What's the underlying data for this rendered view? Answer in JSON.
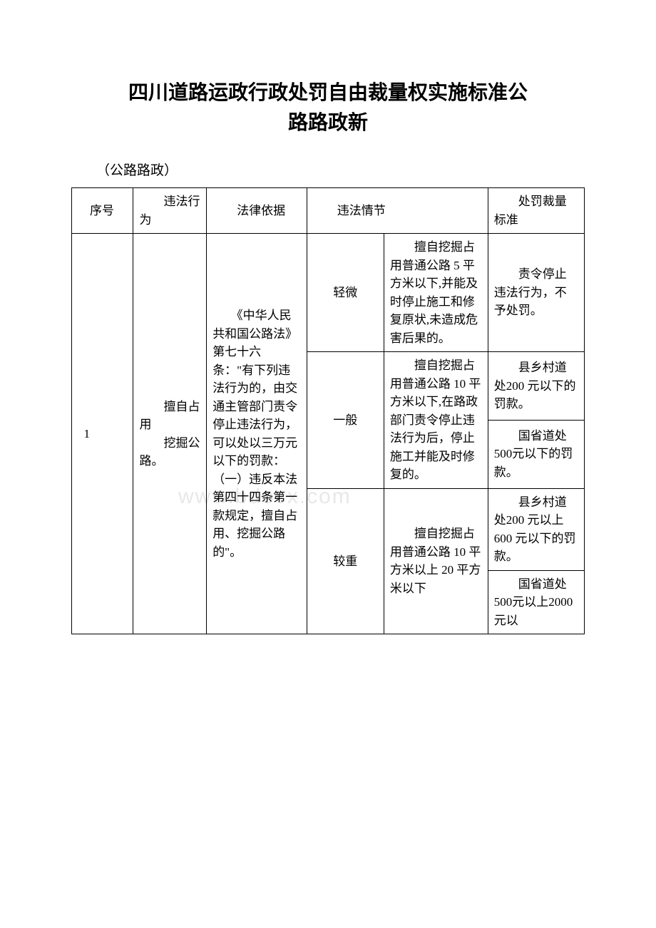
{
  "title_line1": "四川道路运政行政处罚自由裁量权实施标准公",
  "title_line2": "路路政新",
  "subtitle": "（公路路政）",
  "watermark": "www.bdocx.com",
  "headers": {
    "seq": "序号",
    "behavior": "违法行为",
    "basis": "法律依据",
    "situation": "违法情节",
    "penalty": "处罚裁量标准"
  },
  "row1": {
    "seq": "1",
    "behavior_line1": "　　擅自占用",
    "behavior_line2": "　　挖掘公路。",
    "basis": "　　《中华人民共和国公路法》第七十六条：\"有下列违法行为的，由交通主管部门责令停止违法行为，可以处以三万元以下的罚款：（一）违反本法第四十四条第一款规定，擅自占用、挖掘公路的\"。",
    "severity_light": "轻微",
    "severity_normal": "一般",
    "severity_heavy": "较重",
    "detail_light": "　　擅自挖掘占用普通公路 5 平方米以下,并能及时停止施工和修复原状,未造成危害后果的。",
    "detail_normal": "　　擅自挖掘占用普通公路 10 平方米以下,在路政部门责令停止违法行为后，停止施工并能及时修复的。",
    "detail_heavy": "　　擅自挖掘占用普通公路 10 平方米以上 20 平方米以下",
    "penalty_light": "　　责令停止违法行为，不予处罚。",
    "penalty_normal1": "　　县乡村道处200 元以下的罚款。",
    "penalty_normal2": "　　国省道处 500元以下的罚款。",
    "penalty_heavy1": "　　县乡村道处200 元以上 600 元以下的罚款。",
    "penalty_heavy2": "　　国省道处 500元以上2000 元以"
  }
}
